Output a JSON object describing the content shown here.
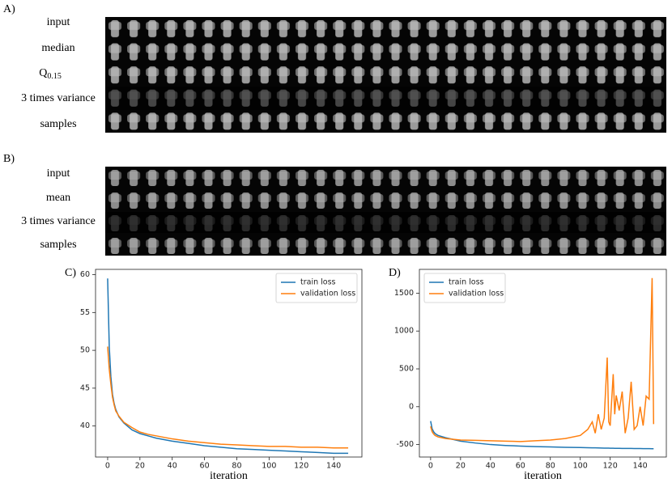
{
  "figure_a": {
    "label": "A)",
    "rows": [
      "input",
      "median",
      {
        "base": "Q",
        "subscript": "0.15"
      },
      "3 times variance",
      "samples"
    ]
  },
  "figure_b": {
    "label": "B)",
    "rows": [
      "input",
      "mean",
      "3 times variance",
      "samples"
    ]
  },
  "chart_data": [
    {
      "type": "line",
      "label": "C)",
      "x_label": "iteration",
      "legend": "upper right",
      "x": [
        0,
        1,
        2,
        3,
        4,
        5,
        7,
        10,
        15,
        20,
        25,
        30,
        40,
        50,
        60,
        70,
        80,
        90,
        100,
        110,
        120,
        130,
        140,
        149
      ],
      "series": [
        {
          "name": "train loss",
          "color": "#1f77b4",
          "values": [
            59.5,
            50.5,
            46.5,
            44.2,
            43.0,
            42.2,
            41.2,
            40.4,
            39.5,
            39.0,
            38.7,
            38.4,
            38.0,
            37.7,
            37.4,
            37.2,
            37.0,
            36.9,
            36.8,
            36.7,
            36.6,
            36.5,
            36.4,
            36.4
          ]
        },
        {
          "name": "validation loss",
          "color": "#ff7f0e",
          "values": [
            50.5,
            47.5,
            45.5,
            43.8,
            42.8,
            42.0,
            41.3,
            40.5,
            39.8,
            39.2,
            38.9,
            38.7,
            38.3,
            38.0,
            37.8,
            37.6,
            37.5,
            37.4,
            37.3,
            37.3,
            37.2,
            37.2,
            37.1,
            37.1
          ]
        }
      ],
      "xlim": [
        -7.5,
        157.5
      ],
      "xticks": [
        0,
        20,
        40,
        60,
        80,
        100,
        120,
        140
      ],
      "ylim": [
        35.9,
        60.7
      ],
      "yticks": [
        40,
        45,
        50,
        55,
        60
      ]
    },
    {
      "type": "line",
      "label": "D)",
      "x_label": "iteration",
      "legend": "upper left",
      "x": [
        0,
        1,
        2,
        3,
        5,
        10,
        20,
        30,
        40,
        50,
        60,
        70,
        80,
        90,
        100,
        105,
        108,
        110,
        112,
        114,
        116,
        118,
        119,
        120,
        122,
        123,
        124,
        126,
        128,
        130,
        132,
        134,
        136,
        138,
        140,
        142,
        144,
        146,
        148,
        149
      ],
      "series": [
        {
          "name": "train loss",
          "color": "#1f77b4",
          "values": [
            -190,
            -290,
            -330,
            -355,
            -380,
            -410,
            -455,
            -480,
            -500,
            -512,
            -520,
            -527,
            -532,
            -537,
            -540,
            -542,
            -543,
            -544,
            -545,
            -546,
            -547,
            -548,
            -548,
            -549,
            -549,
            -550,
            -550,
            -550,
            -551,
            -551,
            -552,
            -552,
            -553,
            -553,
            -553,
            -554,
            -554,
            -554,
            -555,
            -555
          ]
        },
        {
          "name": "validation loss",
          "color": "#ff7f0e",
          "values": [
            -260,
            -330,
            -360,
            -380,
            -400,
            -420,
            -440,
            -445,
            -450,
            -455,
            -460,
            -450,
            -440,
            -420,
            -380,
            -300,
            -200,
            -350,
            -100,
            -300,
            -150,
            650,
            -200,
            -250,
            430,
            -100,
            150,
            -50,
            200,
            -350,
            -150,
            330,
            -300,
            -250,
            0,
            -250,
            140,
            100,
            1700,
            -230
          ]
        }
      ],
      "xlim": [
        -7.5,
        157.5
      ],
      "xticks": [
        0,
        20,
        40,
        60,
        80,
        100,
        120,
        140
      ],
      "ylim": [
        -665,
        1815
      ],
      "yticks": [
        -500,
        0,
        500,
        1000,
        1500
      ]
    }
  ]
}
